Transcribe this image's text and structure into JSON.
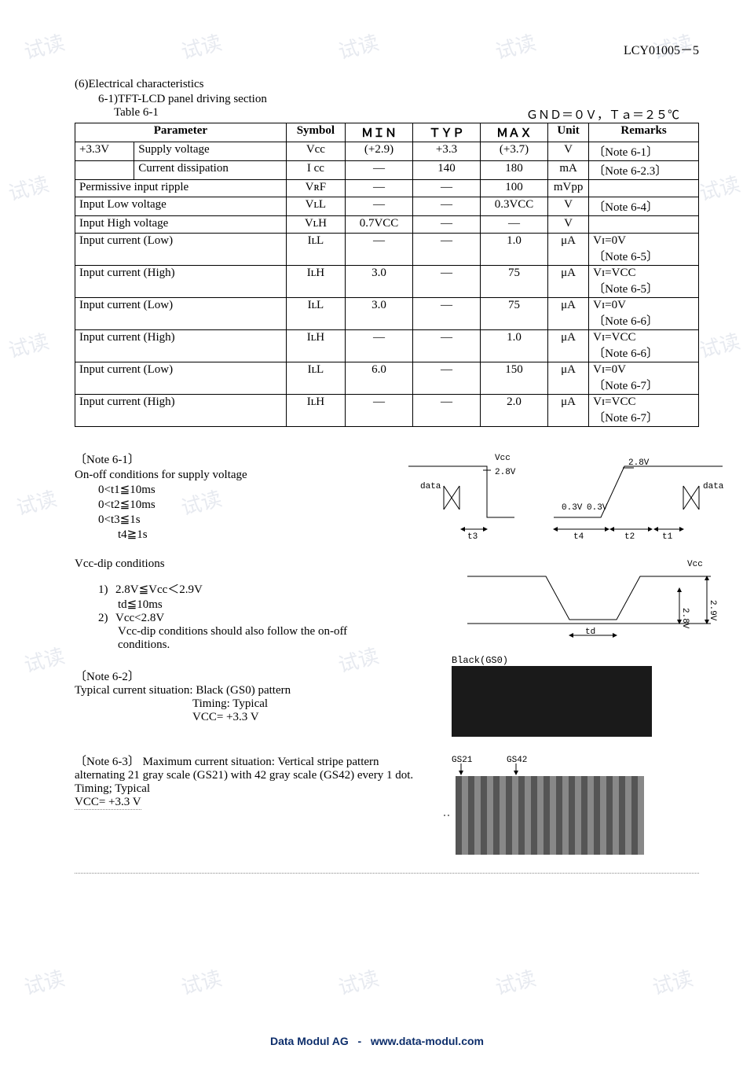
{
  "page_header": "LCY01005－5",
  "section_title": "(6)Electrical characteristics",
  "subsection_title": "6-1)TFT-LCD panel driving section",
  "table_label_left": "Table 6-1",
  "table_label_right": "ＧＮＤ＝０Ｖ，Ｔａ＝２５℃",
  "table": {
    "headers": [
      "Parameter",
      "",
      "Symbol",
      "ＭＩＮ",
      "ＴＹＰ",
      "ＭＡＸ",
      "Unit",
      "Remarks"
    ],
    "rows": [
      {
        "p1": "+3.3V",
        "p2": "Supply voltage",
        "sym": "Vcc",
        "min": "(+2.9)",
        "typ": "+3.3",
        "max": "(+3.7)",
        "unit": "V",
        "rem": "〔Note 6-1〕"
      },
      {
        "p1": "",
        "p2": "Current dissipation",
        "sym": "I cc",
        "min": "—",
        "typ": "140",
        "max": "180",
        "unit": "mA",
        "rem": "〔Note 6-2.3〕"
      },
      {
        "p1": "Permissive input ripple",
        "p2": "",
        "sym": "VʀF",
        "min": "—",
        "typ": "—",
        "max": "100",
        "unit": "mVpp",
        "rem": "",
        "span": true
      },
      {
        "p1": "Input Low voltage",
        "p2": "",
        "sym": "VʟL",
        "min": "—",
        "typ": "—",
        "max": "0.3VCC",
        "unit": "V",
        "rem": "〔Note 6-4〕",
        "span": true
      },
      {
        "p1": "Input High voltage",
        "p2": "",
        "sym": "VʟH",
        "min": "0.7VCC",
        "typ": "—",
        "max": "—",
        "unit": "V",
        "rem": "",
        "span": true
      },
      {
        "p1": "Input current (Low)",
        "p2": "",
        "sym": "IʟL",
        "min": "—",
        "typ": "—",
        "max": "1.0",
        "unit": "μA",
        "rem": "Vɪ=0V\n〔Note 6-5〕",
        "span": true,
        "tall": true
      },
      {
        "p1": "Input current (High)",
        "p2": "",
        "sym": "IʟH",
        "min": "3.0",
        "typ": "—",
        "max": "75",
        "unit": "μA",
        "rem": "Vɪ=VCC\n〔Note 6-5〕",
        "span": true,
        "tall": true
      },
      {
        "p1": "Input current (Low)",
        "p2": "",
        "sym": "IʟL",
        "min": "3.0",
        "typ": "—",
        "max": "75",
        "unit": "μA",
        "rem": "Vɪ=0V\n〔Note 6-6〕",
        "span": true,
        "tall": true
      },
      {
        "p1": "Input current (High)",
        "p2": "",
        "sym": "IʟH",
        "min": "—",
        "typ": "—",
        "max": "1.0",
        "unit": "μA",
        "rem": "Vɪ=VCC\n〔Note 6-6〕",
        "span": true,
        "tall": true
      },
      {
        "p1": "Input current (Low)",
        "p2": "",
        "sym": "IʟL",
        "min": "6.0",
        "typ": "—",
        "max": "150",
        "unit": "μA",
        "rem": "Vɪ=0V\n〔Note 6-7〕",
        "span": true,
        "tall": true
      },
      {
        "p1": "Input current (High)",
        "p2": "",
        "sym": "IʟH",
        "min": "—",
        "typ": "—",
        "max": "2.0",
        "unit": "μA",
        "rem": "Vɪ=VCC\n〔Note 6-7〕",
        "span": true,
        "tall": true
      }
    ]
  },
  "note61": {
    "title": "〔Note 6-1〕",
    "line1": "On-off conditions for supply voltage",
    "c1": "0<t1≦10ms",
    "c2": "0<t2≦10ms",
    "c3": "0<t3≦1s",
    "c4": "t4≧1s",
    "vccdip_title": "Vcc-dip conditions",
    "item1a": "2.8V≦Vcc＜2.9V",
    "item1b": "td≦10ms",
    "item2a": "Vcc<2.8V",
    "item2b": "Vcc-dip conditions should also follow the on-off conditions."
  },
  "note62": {
    "title": "〔Note 6-2〕",
    "line1": "Typical current situation: Black (GS0) pattern",
    "line2": "Timing: Typical",
    "line3": "VCC= +3.3 V"
  },
  "note63": {
    "title": "〔Note 6-3〕",
    "body1": "Maximum current situation: Vertical stripe pattern alternating 21 gray scale (GS21) with 42 gray scale (GS42) every 1 dot.",
    "body2": "Timing; Typical",
    "body3": "VCC= +3.3 V"
  },
  "diagrams": {
    "timing": {
      "vcc_label": "Vcc",
      "v28": "2.8V",
      "v03": "0.3V",
      "data_label": "data",
      "t1": "t1",
      "t2": "t2",
      "t3": "t3",
      "t4": "t4"
    },
    "dip": {
      "vcc_label": "Vcc",
      "v29": "2.9V",
      "v28": "2.8V",
      "td": "td"
    },
    "black": {
      "label": "Black(GS0)"
    },
    "stripe": {
      "gs21": "GS21",
      "gs42": "GS42"
    }
  },
  "footer": {
    "company": "Data Modul AG",
    "sep": "-",
    "url": "www.data-modul.com"
  },
  "watermark_text": "试读",
  "colors": {
    "text": "#000000",
    "watermark": "rgba(120,140,170,0.18)",
    "footer": "#0d2e6b",
    "stroke": "#000000"
  }
}
